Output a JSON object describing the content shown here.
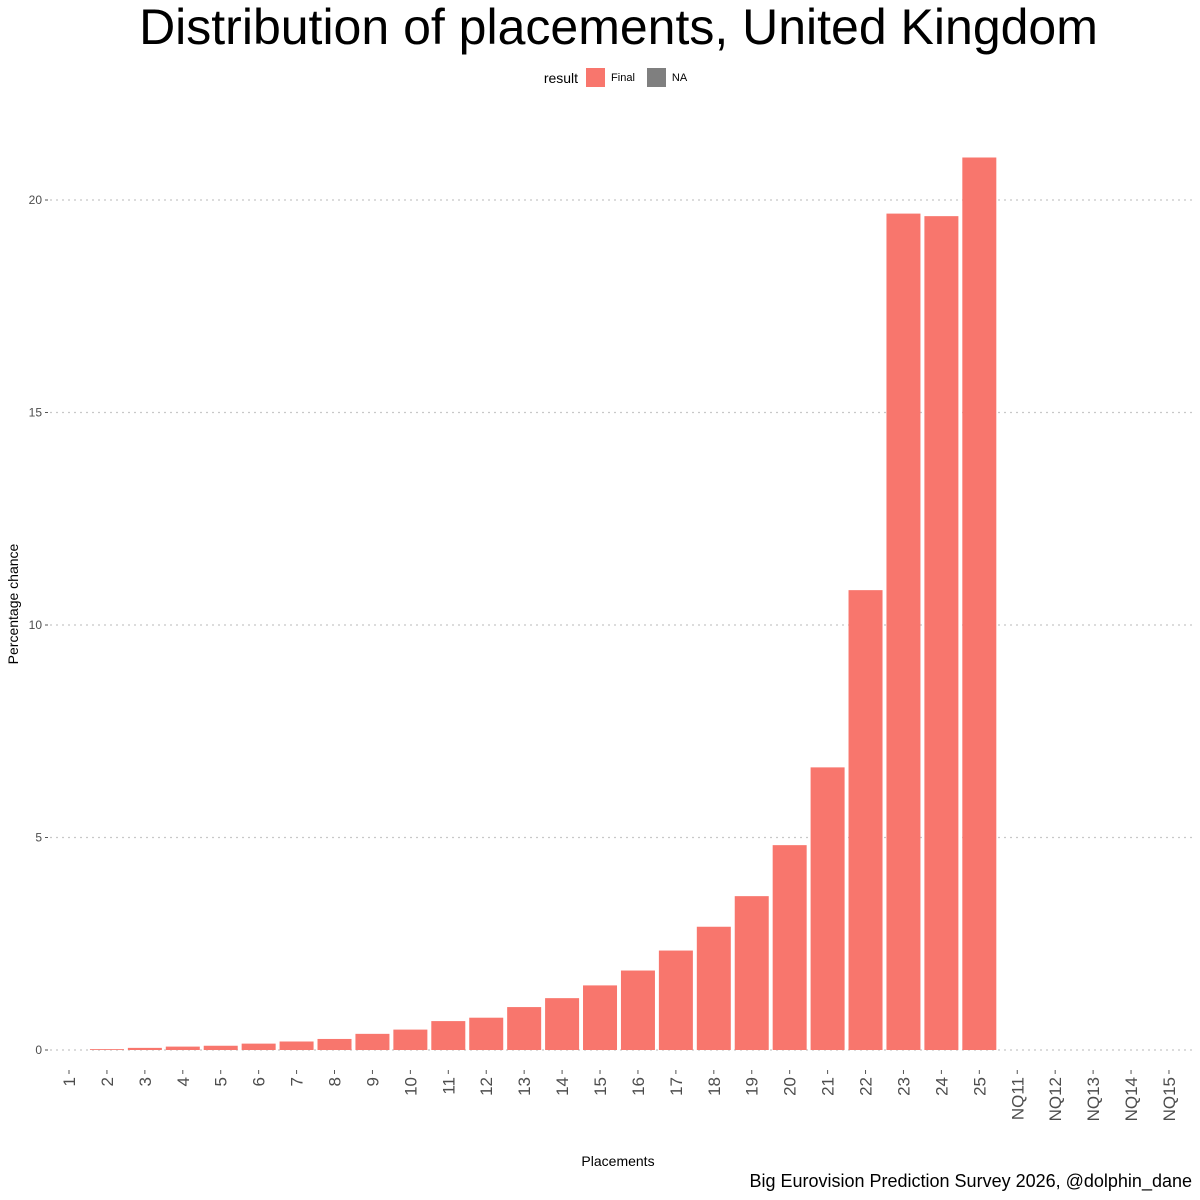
{
  "chart_data": {
    "type": "bar",
    "title": "Distribution of placements, United Kingdom",
    "xlabel": "Placements",
    "ylabel": "Percentage chance",
    "caption": "Big Eurovision Prediction Survey 2026, @dolphin_dane",
    "legend": {
      "title": "result",
      "placement": "top",
      "entries": [
        {
          "label": "Final",
          "color": "#F8766D"
        },
        {
          "label": "NA",
          "color": "#7F7F7F"
        }
      ]
    },
    "ylim": [
      0,
      21
    ],
    "yticks": [
      0,
      5,
      10,
      15,
      20
    ],
    "grid": "horizontal dotted",
    "categories": [
      "1",
      "2",
      "3",
      "4",
      "5",
      "6",
      "7",
      "8",
      "9",
      "10",
      "11",
      "12",
      "13",
      "14",
      "15",
      "16",
      "17",
      "18",
      "19",
      "20",
      "21",
      "22",
      "23",
      "24",
      "25",
      "NQ11",
      "NQ12",
      "NQ13",
      "NQ14",
      "NQ15"
    ],
    "series": [
      {
        "name": "Final",
        "color": "#F8766D",
        "values": [
          0,
          0.02,
          0.05,
          0.08,
          0.1,
          0.15,
          0.2,
          0.26,
          0.38,
          0.48,
          0.68,
          0.76,
          1.01,
          1.22,
          1.52,
          1.87,
          2.34,
          2.9,
          3.62,
          4.82,
          6.65,
          10.82,
          19.68,
          19.62,
          21.0,
          0,
          0,
          0,
          0,
          0
        ]
      }
    ]
  }
}
